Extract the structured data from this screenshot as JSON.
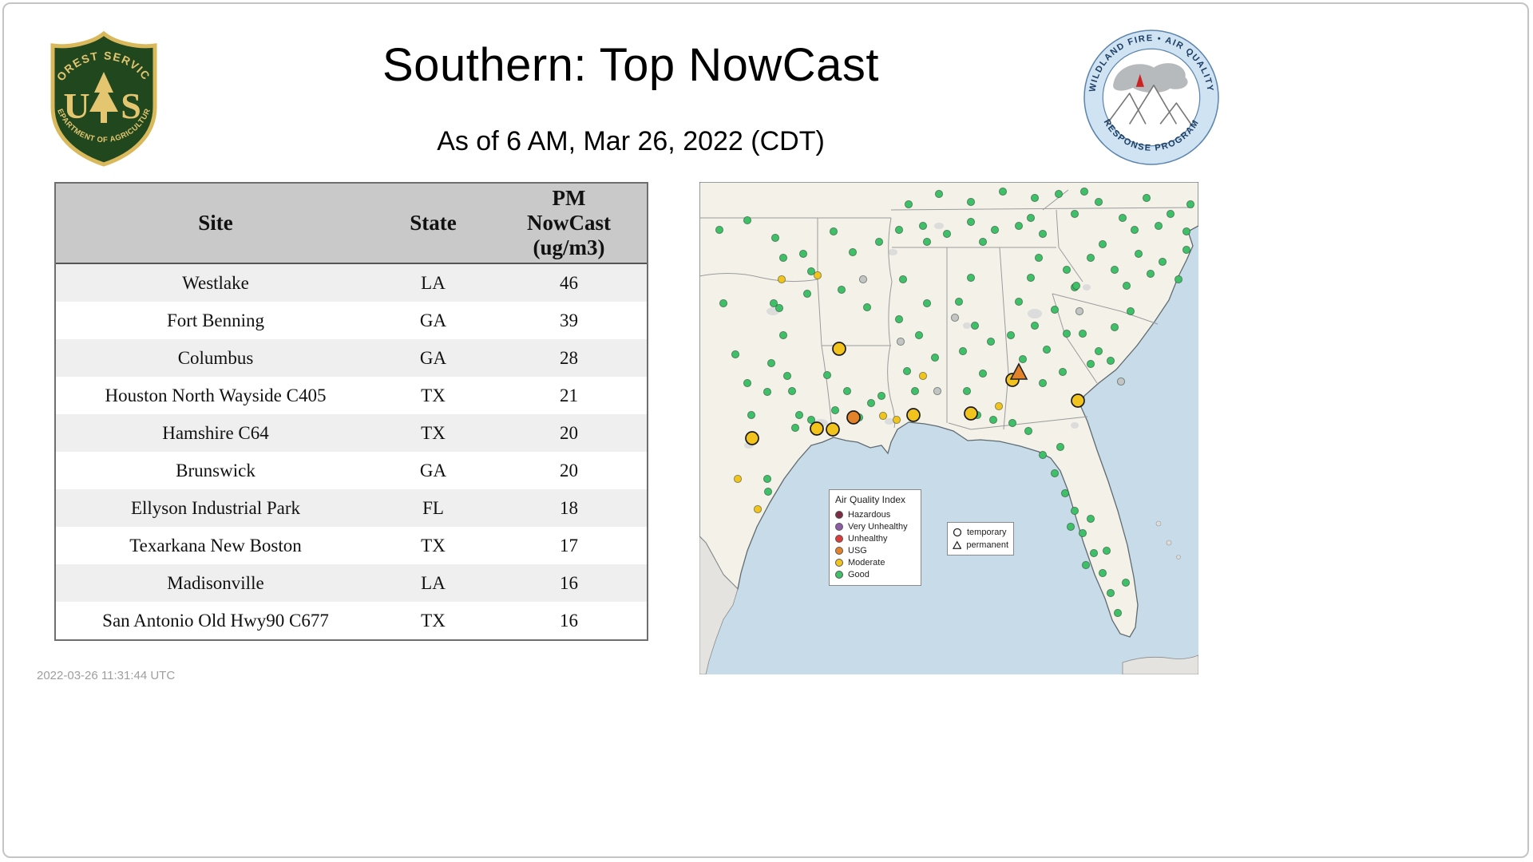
{
  "header": {
    "title": "Southern: Top NowCast",
    "subtitle": "As of  6 AM, Mar 26, 2022 (CDT)",
    "usfs": {
      "arc_top": "FOREST SERVICE",
      "letter_left": "U",
      "letter_right": "S",
      "arc_bottom": "DEPARTMENT OF AGRICULTURE"
    },
    "program": {
      "arc_top": "WILDLAND FIRE • AIR QUALITY",
      "arc_bottom": "RESPONSE PROGRAM"
    }
  },
  "chart_data": {
    "type": "table",
    "title": "Southern: Top NowCast",
    "subtitle": "As of 6 AM, Mar 26, 2022 (CDT)",
    "columns": [
      "Site",
      "State",
      "PM NowCast (ug/m3)"
    ],
    "rows": [
      [
        "Westlake",
        "LA",
        46
      ],
      [
        "Fort Benning",
        "GA",
        39
      ],
      [
        "Columbus",
        "GA",
        28
      ],
      [
        "Houston North Wayside C405",
        "TX",
        21
      ],
      [
        "Hamshire C64",
        "TX",
        20
      ],
      [
        "Brunswick",
        "GA",
        20
      ],
      [
        "Ellyson Industrial Park",
        "FL",
        18
      ],
      [
        "Texarkana New Boston",
        "TX",
        17
      ],
      [
        "Madisonville",
        "LA",
        16
      ],
      [
        "San Antonio Old Hwy90 C677",
        "TX",
        16
      ]
    ]
  },
  "table": {
    "col_site": "Site",
    "col_state": "State",
    "col_pm": "PM\nNowCast\n(ug/m3)"
  },
  "map": {
    "aqi_legend": {
      "title": "Air Quality Index",
      "items": [
        {
          "label": "Hazardous",
          "color": "#7d2a45"
        },
        {
          "label": "Very Unhealthy",
          "color": "#8e5ba7"
        },
        {
          "label": "Unhealthy",
          "color": "#dd3c3c"
        },
        {
          "label": "USG",
          "color": "#e2832c"
        },
        {
          "label": "Moderate",
          "color": "#f2c31d"
        },
        {
          "label": "Good",
          "color": "#3fbf68"
        }
      ]
    },
    "marker_legend": {
      "temporary": "temporary",
      "permanent": "permanent"
    },
    "colors": {
      "good": "#3fbf68",
      "mod": "#f2c31d",
      "usg": "#e2832c",
      "gray": "#c4c4c4"
    },
    "markers": [
      [
        30,
        152,
        "good",
        "dot"
      ],
      [
        93,
        152,
        "good",
        "dot"
      ],
      [
        100,
        158,
        "good",
        "dot"
      ],
      [
        45,
        216,
        "good",
        "dot"
      ],
      [
        90,
        227,
        "good",
        "dot"
      ],
      [
        110,
        243,
        "good",
        "dot"
      ],
      [
        116,
        262,
        "good",
        "dot"
      ],
      [
        85,
        263,
        "good",
        "dot"
      ],
      [
        65,
        292,
        "good",
        "dot"
      ],
      [
        125,
        292,
        "good",
        "dot"
      ],
      [
        135,
        140,
        "good",
        "dot"
      ],
      [
        105,
        192,
        "good",
        "dot"
      ],
      [
        60,
        252,
        "good",
        "dot"
      ],
      [
        120,
        308,
        "good",
        "dot"
      ],
      [
        140,
        298,
        "good",
        "dot"
      ],
      [
        85,
        372,
        "good",
        "dot"
      ],
      [
        86,
        388,
        "good",
        "dot"
      ],
      [
        25,
        60,
        "good",
        "dot"
      ],
      [
        60,
        48,
        "good",
        "dot"
      ],
      [
        95,
        70,
        "good",
        "dot"
      ],
      [
        130,
        90,
        "good",
        "dot"
      ],
      [
        140,
        112,
        "good",
        "dot"
      ],
      [
        105,
        95,
        "good",
        "dot"
      ],
      [
        168,
        62,
        "good",
        "dot"
      ],
      [
        192,
        88,
        "good",
        "dot"
      ],
      [
        178,
        135,
        "good",
        "dot"
      ],
      [
        210,
        157,
        "good",
        "dot"
      ],
      [
        225,
        75,
        "good",
        "dot"
      ],
      [
        185,
        262,
        "good",
        "dot"
      ],
      [
        215,
        277,
        "good",
        "dot"
      ],
      [
        200,
        295,
        "good",
        "dot"
      ],
      [
        170,
        286,
        "good",
        "dot"
      ],
      [
        228,
        268,
        "good",
        "dot"
      ],
      [
        160,
        242,
        "good",
        "dot"
      ],
      [
        260,
        237,
        "good",
        "dot"
      ],
      [
        275,
        192,
        "good",
        "dot"
      ],
      [
        285,
        152,
        "good",
        "dot"
      ],
      [
        255,
        122,
        "good",
        "dot"
      ],
      [
        270,
        262,
        "good",
        "dot"
      ],
      [
        295,
        220,
        "good",
        "dot"
      ],
      [
        250,
        172,
        "good",
        "dot"
      ],
      [
        330,
        212,
        "good",
        "dot"
      ],
      [
        345,
        180,
        "good",
        "dot"
      ],
      [
        355,
        240,
        "good",
        "dot"
      ],
      [
        325,
        150,
        "good",
        "dot"
      ],
      [
        340,
        120,
        "good",
        "dot"
      ],
      [
        365,
        200,
        "good",
        "dot"
      ],
      [
        335,
        262,
        "good",
        "dot"
      ],
      [
        250,
        60,
        "good",
        "dot"
      ],
      [
        280,
        55,
        "good",
        "dot"
      ],
      [
        310,
        65,
        "good",
        "dot"
      ],
      [
        340,
        50,
        "good",
        "dot"
      ],
      [
        370,
        60,
        "good",
        "dot"
      ],
      [
        400,
        55,
        "good",
        "dot"
      ],
      [
        430,
        65,
        "good",
        "dot"
      ],
      [
        285,
        75,
        "good",
        "dot"
      ],
      [
        355,
        75,
        "good",
        "dot"
      ],
      [
        415,
        45,
        "good",
        "dot"
      ],
      [
        300,
        15,
        "good",
        "dot"
      ],
      [
        340,
        25,
        "good",
        "dot"
      ],
      [
        380,
        12,
        "good",
        "dot"
      ],
      [
        420,
        20,
        "good",
        "dot"
      ],
      [
        262,
        28,
        "good",
        "dot"
      ],
      [
        450,
        15,
        "good",
        "dot"
      ],
      [
        400,
        150,
        "good",
        "dot"
      ],
      [
        420,
        180,
        "good",
        "dot"
      ],
      [
        435,
        210,
        "good",
        "dot"
      ],
      [
        415,
        120,
        "good",
        "dot"
      ],
      [
        445,
        160,
        "good",
        "dot"
      ],
      [
        460,
        190,
        "good",
        "dot"
      ],
      [
        430,
        252,
        "good",
        "dot"
      ],
      [
        405,
        222,
        "good",
        "dot"
      ],
      [
        455,
        238,
        "good",
        "dot"
      ],
      [
        470,
        132,
        "good",
        "dot"
      ],
      [
        390,
        192,
        "good",
        "dot"
      ],
      [
        425,
        95,
        "good",
        "dot"
      ],
      [
        480,
        190,
        "good",
        "dot"
      ],
      [
        500,
        212,
        "good",
        "dot"
      ],
      [
        520,
        182,
        "good",
        "dot"
      ],
      [
        540,
        162,
        "good",
        "dot"
      ],
      [
        490,
        228,
        "good",
        "dot"
      ],
      [
        515,
        224,
        "good",
        "dot"
      ],
      [
        460,
        110,
        "good",
        "dot"
      ],
      [
        490,
        95,
        "good",
        "dot"
      ],
      [
        520,
        110,
        "good",
        "dot"
      ],
      [
        550,
        90,
        "good",
        "dot"
      ],
      [
        580,
        100,
        "good",
        "dot"
      ],
      [
        600,
        122,
        "good",
        "dot"
      ],
      [
        472,
        130,
        "good",
        "dot"
      ],
      [
        535,
        130,
        "good",
        "dot"
      ],
      [
        565,
        115,
        "good",
        "dot"
      ],
      [
        505,
        78,
        "good",
        "dot"
      ],
      [
        610,
        85,
        "good",
        "dot"
      ],
      [
        470,
        40,
        "good",
        "dot"
      ],
      [
        500,
        25,
        "good",
        "dot"
      ],
      [
        530,
        45,
        "good",
        "dot"
      ],
      [
        560,
        20,
        "good",
        "dot"
      ],
      [
        590,
        40,
        "good",
        "dot"
      ],
      [
        610,
        62,
        "good",
        "dot"
      ],
      [
        545,
        60,
        "good",
        "dot"
      ],
      [
        482,
        12,
        "good",
        "dot"
      ],
      [
        615,
        28,
        "good",
        "dot"
      ],
      [
        575,
        55,
        "good",
        "dot"
      ],
      [
        430,
        342,
        "good",
        "dot"
      ],
      [
        445,
        365,
        "good",
        "dot"
      ],
      [
        458,
        390,
        "good",
        "dot"
      ],
      [
        470,
        412,
        "good",
        "dot"
      ],
      [
        480,
        440,
        "good",
        "dot"
      ],
      [
        494,
        465,
        "good",
        "dot"
      ],
      [
        505,
        490,
        "good",
        "dot"
      ],
      [
        515,
        515,
        "good",
        "dot"
      ],
      [
        524,
        540,
        "good",
        "dot"
      ],
      [
        534,
        502,
        "good",
        "dot"
      ],
      [
        510,
        462,
        "good",
        "dot"
      ],
      [
        490,
        422,
        "good",
        "dot"
      ],
      [
        452,
        332,
        "good",
        "dot"
      ],
      [
        412,
        312,
        "good",
        "dot"
      ],
      [
        392,
        302,
        "good",
        "dot"
      ],
      [
        368,
        298,
        "good",
        "dot"
      ],
      [
        348,
        292,
        "good",
        "dot"
      ],
      [
        465,
        432,
        "good",
        "dot"
      ],
      [
        484,
        480,
        "good",
        "dot"
      ],
      [
        320,
        170,
        "gray",
        "dot"
      ],
      [
        252,
        200,
        "gray",
        "dot"
      ],
      [
        476,
        162,
        "gray",
        "dot"
      ],
      [
        205,
        122,
        "gray",
        "dot"
      ],
      [
        298,
        262,
        "gray",
        "dot"
      ],
      [
        528,
        250,
        "gray",
        "dot"
      ],
      [
        103,
        122,
        "mod",
        "dot"
      ],
      [
        148,
        117,
        "mod",
        "dot"
      ],
      [
        230,
        293,
        "mod",
        "dot"
      ],
      [
        247,
        298,
        "mod",
        "dot"
      ],
      [
        280,
        243,
        "mod",
        "dot"
      ],
      [
        375,
        281,
        "mod",
        "dot"
      ],
      [
        48,
        372,
        "mod",
        "dot"
      ],
      [
        73,
        410,
        "mod",
        "dot"
      ],
      [
        392,
        248,
        "mod",
        "big"
      ],
      [
        175,
        209,
        "mod",
        "big"
      ],
      [
        147,
        309,
        "mod",
        "big"
      ],
      [
        167,
        310,
        "mod",
        "big"
      ],
      [
        66,
        321,
        "mod",
        "big"
      ],
      [
        268,
        292,
        "mod",
        "big"
      ],
      [
        340,
        290,
        "mod",
        "big"
      ],
      [
        474,
        274,
        "mod",
        "big"
      ],
      [
        193,
        295,
        "usg",
        "big"
      ],
      [
        400,
        239,
        "usg",
        "tri"
      ]
    ]
  },
  "footer": {
    "timestamp": "2022-03-26 11:31:44 UTC"
  }
}
